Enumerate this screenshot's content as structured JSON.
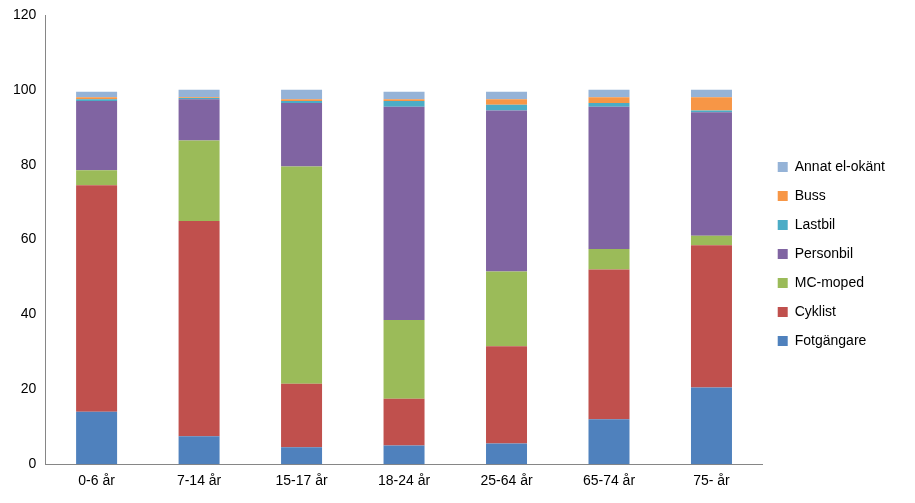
{
  "chart_data": {
    "type": "bar",
    "stacked": true,
    "grid": false,
    "legend": "right",
    "categories": [
      "0-6 år",
      "7-14 år",
      "15-17 år",
      "18-24 år",
      "25-64 år",
      "65-74 år",
      "75- år"
    ],
    "ylim": [
      0,
      120
    ],
    "yticks": [
      0,
      20,
      40,
      60,
      80,
      100,
      120
    ],
    "series": [
      {
        "name": "Fotgängare",
        "color": "#4f81bd",
        "values": [
          14,
          7.5,
          4.5,
          5,
          5.5,
          12,
          20.5
        ]
      },
      {
        "name": "Cyklist",
        "color": "#c0504d",
        "values": [
          60.5,
          57.5,
          17,
          12.5,
          26,
          40,
          38
        ]
      },
      {
        "name": "MC-moped",
        "color": "#9bbb59",
        "values": [
          4,
          21.5,
          58,
          21,
          20,
          5.5,
          2.5
        ]
      },
      {
        "name": "Personbil",
        "color": "#8064a2",
        "values": [
          18.5,
          11,
          17,
          57,
          43,
          38,
          33
        ]
      },
      {
        "name": "Lastbil",
        "color": "#4bacc6",
        "values": [
          0.5,
          0.3,
          0.5,
          1.5,
          1.5,
          1,
          0.5
        ]
      },
      {
        "name": "Buss",
        "color": "#f79646",
        "values": [
          0.5,
          0.2,
          0.5,
          0.5,
          1.5,
          1.5,
          3.5
        ]
      },
      {
        "name": "Annat el-okänt",
        "color": "#95b3d7",
        "values": [
          1.5,
          2,
          2.5,
          2,
          2,
          2,
          2
        ]
      }
    ]
  }
}
